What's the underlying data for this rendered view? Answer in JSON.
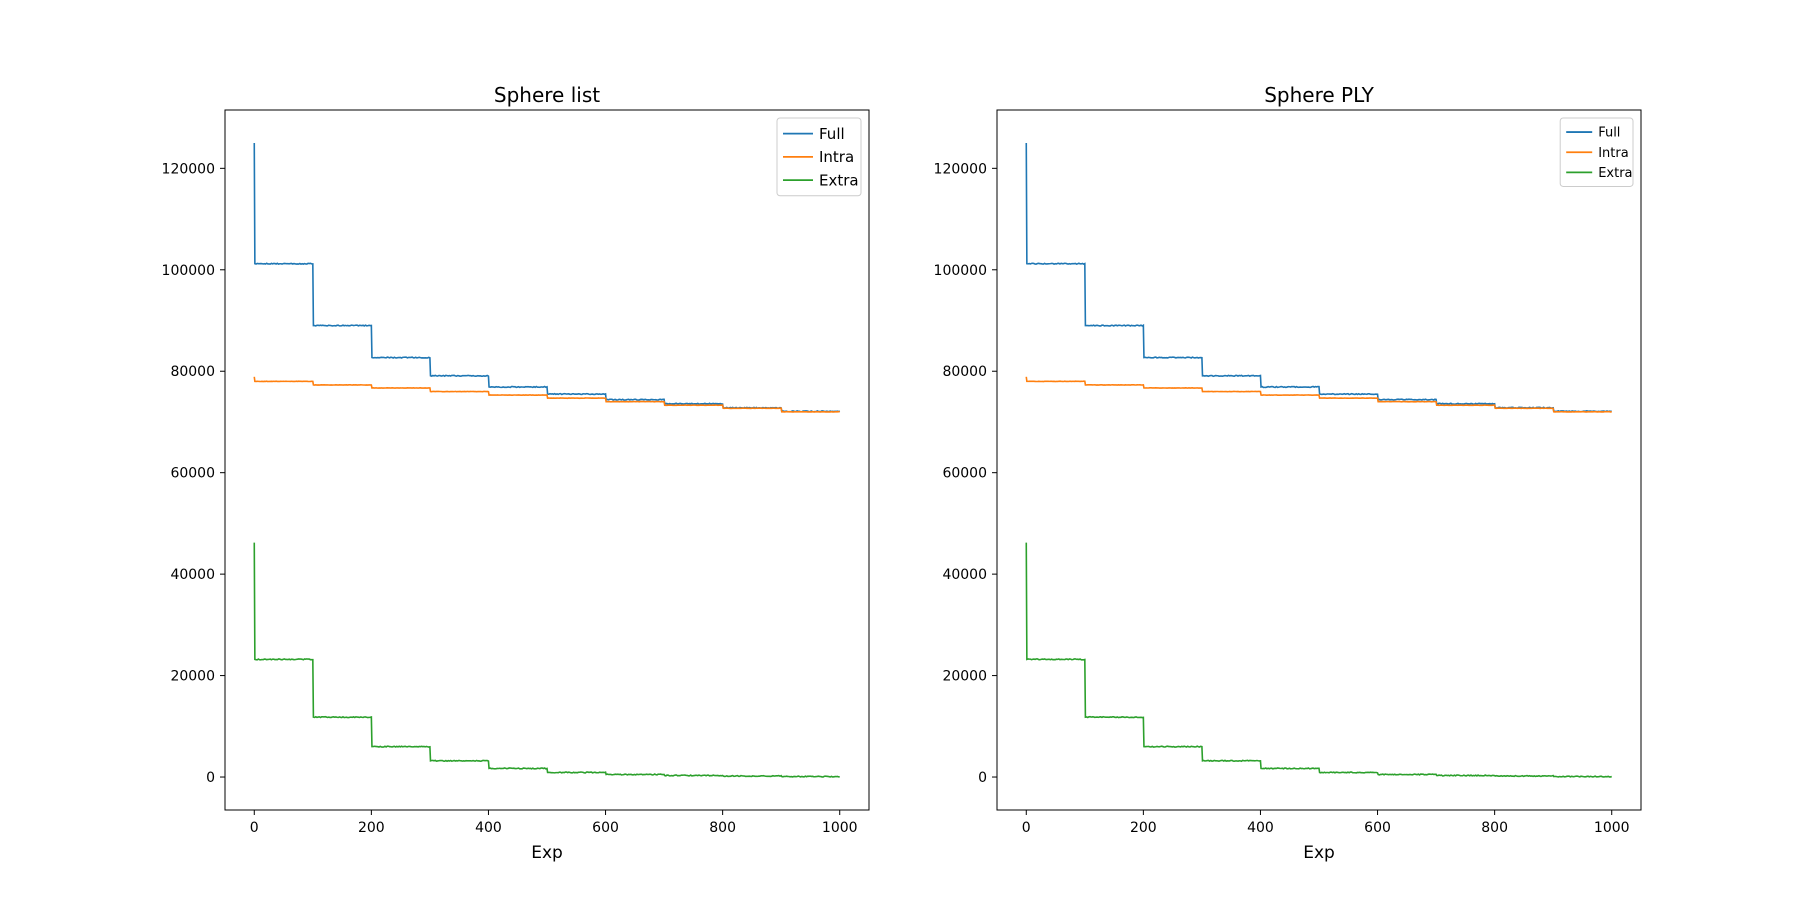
{
  "chart_data": [
    {
      "type": "line",
      "title": "Sphere list",
      "xlabel": "Exp",
      "ylabel": "",
      "xlim": [
        -50,
        1050
      ],
      "ylim": [
        -6500,
        131500
      ],
      "xticks": [
        0,
        200,
        400,
        600,
        800,
        1000
      ],
      "yticks": [
        0,
        20000,
        40000,
        60000,
        80000,
        100000,
        120000
      ],
      "legend": {
        "position": "top-right",
        "fontsize": 15
      },
      "series": [
        {
          "name": "Full",
          "color": "#1f77b4",
          "x": [
            0,
            1,
            100,
            101,
            200,
            201,
            300,
            301,
            400,
            401,
            500,
            501,
            600,
            601,
            700,
            701,
            800,
            801,
            900,
            901,
            1000
          ],
          "values": [
            125000,
            101200,
            101200,
            89000,
            89000,
            82700,
            82700,
            79100,
            79100,
            76900,
            76900,
            75500,
            75500,
            74400,
            74400,
            73600,
            73600,
            72800,
            72800,
            72100,
            72100
          ]
        },
        {
          "name": "Intra",
          "color": "#ff7f0e",
          "x": [
            0,
            1,
            100,
            101,
            200,
            201,
            300,
            301,
            400,
            401,
            500,
            501,
            600,
            601,
            700,
            701,
            800,
            801,
            900,
            901,
            1000
          ],
          "values": [
            78900,
            78000,
            78000,
            77300,
            77300,
            76700,
            76700,
            76000,
            76000,
            75300,
            75300,
            74700,
            74700,
            74000,
            74000,
            73300,
            73300,
            72700,
            72700,
            72000,
            72000
          ]
        },
        {
          "name": "Extra",
          "color": "#2ca02c",
          "x": [
            0,
            1,
            100,
            101,
            200,
            201,
            300,
            301,
            400,
            401,
            500,
            501,
            600,
            601,
            700,
            701,
            800,
            801,
            900,
            901,
            1000
          ],
          "values": [
            46200,
            23200,
            23200,
            11800,
            11800,
            6000,
            6000,
            3200,
            3200,
            1700,
            1700,
            900,
            900,
            500,
            500,
            300,
            300,
            200,
            200,
            100,
            100
          ]
        }
      ]
    },
    {
      "type": "line",
      "title": "Sphere PLY",
      "xlabel": "Exp",
      "ylabel": "",
      "xlim": [
        -50,
        1050
      ],
      "ylim": [
        -6500,
        131500
      ],
      "xticks": [
        0,
        200,
        400,
        600,
        800,
        1000
      ],
      "yticks": [
        0,
        20000,
        40000,
        60000,
        80000,
        100000,
        120000
      ],
      "legend": {
        "position": "top-right",
        "fontsize": 13
      },
      "series": [
        {
          "name": "Full",
          "color": "#1f77b4",
          "x": [
            0,
            1,
            100,
            101,
            200,
            201,
            300,
            301,
            400,
            401,
            500,
            501,
            600,
            601,
            700,
            701,
            800,
            801,
            900,
            901,
            1000
          ],
          "values": [
            125000,
            101200,
            101200,
            89000,
            89000,
            82700,
            82700,
            79100,
            79100,
            76900,
            76900,
            75500,
            75500,
            74400,
            74400,
            73600,
            73600,
            72800,
            72800,
            72100,
            72100
          ]
        },
        {
          "name": "Intra",
          "color": "#ff7f0e",
          "x": [
            0,
            1,
            100,
            101,
            200,
            201,
            300,
            301,
            400,
            401,
            500,
            501,
            600,
            601,
            700,
            701,
            800,
            801,
            900,
            901,
            1000
          ],
          "values": [
            78900,
            78000,
            78000,
            77300,
            77300,
            76700,
            76700,
            76000,
            76000,
            75300,
            75300,
            74700,
            74700,
            74000,
            74000,
            73300,
            73300,
            72700,
            72700,
            72000,
            72000
          ]
        },
        {
          "name": "Extra",
          "color": "#2ca02c",
          "x": [
            0,
            1,
            100,
            101,
            200,
            201,
            300,
            301,
            400,
            401,
            500,
            501,
            600,
            601,
            700,
            701,
            800,
            801,
            900,
            901,
            1000
          ],
          "values": [
            46200,
            23200,
            23200,
            11800,
            11800,
            6000,
            6000,
            3200,
            3200,
            1700,
            1700,
            900,
            900,
            500,
            500,
            300,
            300,
            200,
            200,
            100,
            100
          ]
        }
      ]
    }
  ]
}
